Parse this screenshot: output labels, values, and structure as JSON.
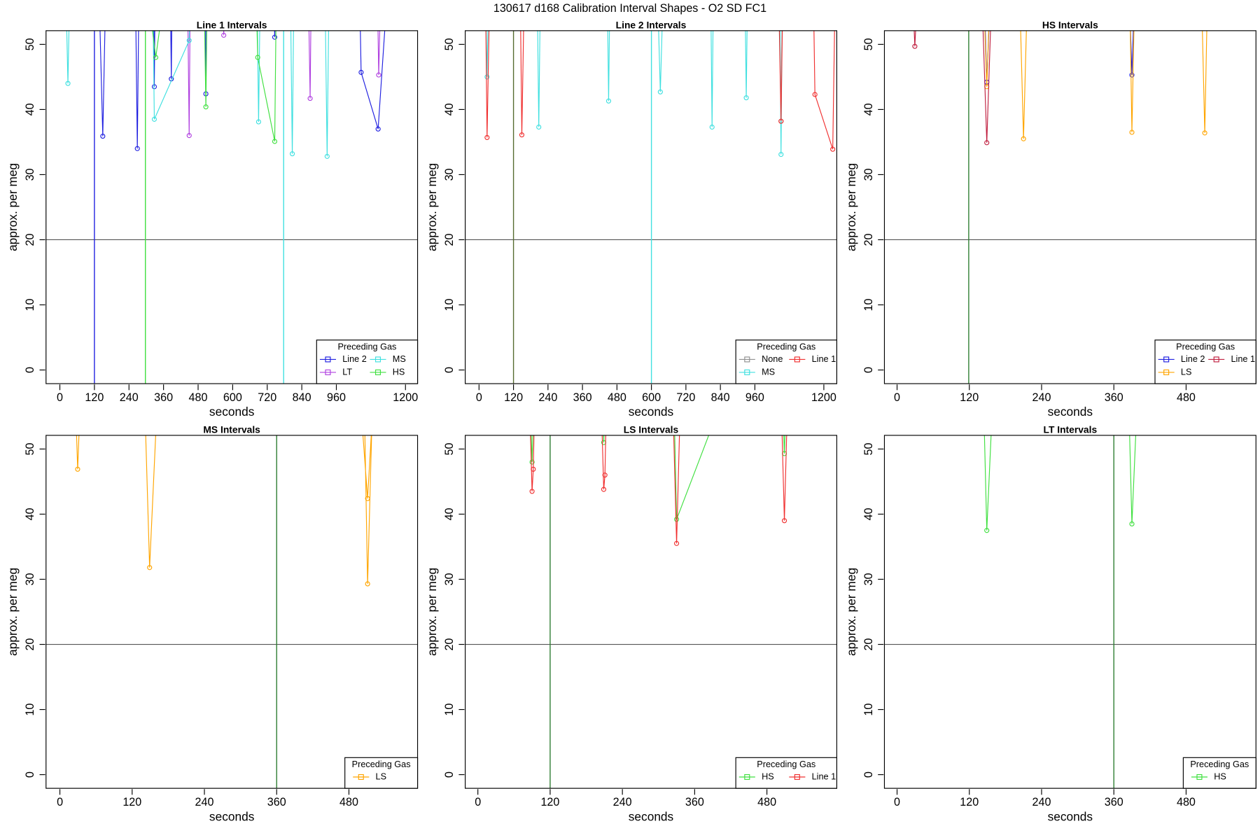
{
  "title": "130617   d168   Calibration Interval Shapes - O2 SD FC1",
  "chart_data": [
    {
      "type": "line",
      "title": "Line 1 Intervals",
      "x_label": "seconds",
      "y_label": "approx. per meg",
      "xlim": [
        -48,
        1242
      ],
      "ylim": [
        -2.1,
        52.1
      ],
      "xticks": [
        0,
        120,
        240,
        360,
        480,
        600,
        720,
        840,
        960,
        1200
      ],
      "yticks": [
        0,
        10,
        20,
        30,
        40,
        50
      ],
      "hline": 20,
      "legend": "bottom-right",
      "legend_title": "Preceding Gas",
      "vlines": [
        {
          "value": 120,
          "color": "#2020e0"
        },
        {
          "value": 297,
          "color": "#40e040"
        },
        {
          "value": 777,
          "color": "#40e0e0"
        }
      ],
      "series": [
        {
          "name": "Line 2",
          "color": "#2020e0",
          "x": [
            135,
            149,
            160,
            262,
            269,
            275,
            325,
            328,
            331,
            383,
            387,
            390,
            503,
            507,
            510,
            741,
            746,
            750,
            1040,
            1046,
            1105,
            1140
          ],
          "values": [
            60,
            35.9,
            60,
            60,
            34,
            60,
            60,
            43.5,
            60,
            60,
            44.7,
            60,
            60,
            42.4,
            60,
            60,
            51.1,
            60,
            60,
            45.7,
            37,
            60
          ]
        },
        {
          "name": "LT",
          "color": "#b040e0",
          "x": [
            443,
            449,
            453,
            565,
            569,
            573,
            862,
            869,
            873,
            1102,
            1107,
            1115
          ],
          "values": [
            60,
            36,
            60,
            60,
            51.4,
            60,
            60,
            41.7,
            60,
            60,
            45.3,
            60
          ]
        },
        {
          "name": "MS",
          "color": "#40e0e0",
          "x": [
            20,
            28,
            35,
            322,
            328,
            449,
            455,
            684,
            690,
            696,
            800,
            807,
            813,
            920,
            928,
            935
          ],
          "values": [
            60,
            44,
            60,
            60,
            38.5,
            50.6,
            60,
            60,
            38.1,
            60,
            60,
            33.2,
            60,
            60,
            32.8,
            60
          ]
        },
        {
          "name": "HS",
          "color": "#40e040",
          "x": [
            300,
            333,
            370,
            500,
            507,
            512,
            680,
            687,
            746,
            752
          ],
          "values": [
            60,
            48,
            60,
            60,
            40.4,
            60,
            60,
            48,
            35.1,
            60
          ]
        }
      ]
    },
    {
      "type": "line",
      "title": "Line 2 Intervals",
      "x_label": "seconds",
      "y_label": "approx. per meg",
      "xlim": [
        -48,
        1245
      ],
      "ylim": [
        -2.1,
        52.1
      ],
      "xticks": [
        0,
        120,
        240,
        360,
        480,
        600,
        720,
        840,
        960,
        1200
      ],
      "yticks": [
        0,
        10,
        20,
        30,
        40,
        50
      ],
      "hline": 20,
      "legend": "bottom-right",
      "legend_title": "Preceding Gas",
      "vlines": [
        {
          "value": 120,
          "color": "#556b2f"
        },
        {
          "value": 600,
          "color": "#40e0e0"
        }
      ],
      "series": [
        {
          "name": "None",
          "color": "#909090",
          "x": [
            1045,
            1051,
            1056
          ],
          "values": [
            60,
            38.2,
            60
          ]
        },
        {
          "name": "MS",
          "color": "#40e0e0",
          "x": [
            22,
            28,
            34,
            202,
            208,
            214,
            446,
            451,
            456,
            620,
            631,
            642,
            806,
            811,
            816,
            925,
            930,
            935,
            1046,
            1051,
            1056
          ],
          "values": [
            60,
            45,
            60,
            60,
            37.3,
            60,
            60,
            41.3,
            60,
            60,
            42.7,
            60,
            60,
            37.3,
            60,
            60,
            41.8,
            60,
            60,
            33.1,
            60
          ]
        },
        {
          "name": "Line 1",
          "color": "#f03030",
          "x": [
            22,
            28,
            38,
            143,
            149,
            158,
            1042,
            1051,
            1058,
            1163,
            1169,
            1231,
            1240
          ],
          "values": [
            60,
            35.7,
            60,
            60,
            36.1,
            60,
            60,
            38.2,
            60,
            60,
            42.3,
            33.9,
            60
          ]
        }
      ]
    },
    {
      "type": "line",
      "title": "HS Intervals",
      "x_label": "seconds",
      "y_label": "approx. per meg",
      "xlim": [
        -21,
        596
      ],
      "ylim": [
        -2.1,
        52.1
      ],
      "xticks": [
        0,
        120,
        240,
        360,
        480
      ],
      "yticks": [
        0,
        10,
        20,
        30,
        40,
        50
      ],
      "hline": 20,
      "legend": "bottom-right",
      "legend_title": "Preceding Gas",
      "vlines": [
        {
          "value": 119,
          "color": "#2e7d32"
        }
      ],
      "series": [
        {
          "name": "Line 2",
          "color": "#2020e0",
          "x": [
            144,
            149,
            156,
            385,
            390,
            395
          ],
          "values": [
            60,
            44.2,
            60,
            60,
            45.3,
            60
          ]
        },
        {
          "name": "LS",
          "color": "#ffa500",
          "x": [
            143,
            149,
            155,
            203,
            210,
            217,
            386,
            390,
            395,
            505,
            511,
            516
          ],
          "values": [
            60,
            43.5,
            60,
            60,
            35.5,
            60,
            60,
            36.5,
            60,
            60,
            36.4,
            60
          ]
        },
        {
          "name": "Line 1",
          "color": "#c02040",
          "x": [
            25,
            29.5,
            35,
            140,
            149,
            158
          ],
          "values": [
            60,
            49.7,
            60,
            60,
            34.9,
            60
          ]
        }
      ]
    },
    {
      "type": "line",
      "title": "MS Intervals",
      "x_label": "seconds",
      "y_label": "approx. per meg",
      "xlim": [
        -23,
        594
      ],
      "ylim": [
        -2.1,
        52.1
      ],
      "xticks": [
        0,
        120,
        240,
        360,
        480
      ],
      "yticks": [
        0,
        10,
        20,
        30,
        40,
        50
      ],
      "hline": 20,
      "legend": "bottom-right",
      "legend_title": "Preceding Gas",
      "vlines": [
        {
          "value": 360,
          "color": "#2e7d32"
        }
      ],
      "series": [
        {
          "name": "LS",
          "color": "#ffa500",
          "x": [
            25,
            29.5,
            35,
            140,
            149,
            163,
            497,
            511,
            522,
            505,
            511,
            520
          ],
          "values": [
            60,
            46.9,
            60,
            60,
            31.8,
            60,
            60,
            42.4,
            60,
            60,
            29.3,
            60
          ]
        }
      ]
    },
    {
      "type": "line",
      "title": "LS Intervals",
      "x_label": "seconds",
      "y_label": "approx. per meg",
      "xlim": [
        -21,
        596
      ],
      "ylim": [
        -2.1,
        52.1
      ],
      "xticks": [
        0,
        120,
        240,
        360,
        480
      ],
      "yticks": [
        0,
        10,
        20,
        30,
        40,
        50
      ],
      "hline": 20,
      "legend": "bottom-right",
      "legend_title": "Preceding Gas",
      "vlines": [
        {
          "value": 120,
          "color": "#2e7d32"
        }
      ],
      "series": [
        {
          "name": "HS",
          "color": "#40e040",
          "x": [
            86,
            90,
            94,
            206,
            209,
            212,
            325,
            330,
            385,
            505,
            509,
            513
          ],
          "values": [
            60,
            48,
            60,
            60,
            51,
            60,
            60,
            39.2,
            52.5,
            60,
            49.3,
            60
          ]
        },
        {
          "name": "Line 1",
          "color": "#f03030",
          "x": [
            85,
            90,
            92,
            95,
            204,
            209,
            211,
            214,
            323,
            330,
            337,
            503,
            509,
            515
          ],
          "values": [
            60,
            43.5,
            46.9,
            60,
            60,
            43.8,
            46,
            60,
            60,
            35.5,
            60,
            60,
            39,
            60
          ]
        }
      ]
    },
    {
      "type": "line",
      "title": "LT Intervals",
      "x_label": "seconds",
      "y_label": "approx. per meg",
      "xlim": [
        -21,
        596
      ],
      "ylim": [
        -2.1,
        52.1
      ],
      "xticks": [
        0,
        120,
        240,
        360,
        480
      ],
      "yticks": [
        0,
        10,
        20,
        30,
        40,
        50
      ],
      "hline": 20,
      "legend": "bottom-right",
      "legend_title": "Preceding Gas",
      "vlines": [
        {
          "value": 360,
          "color": "#2e7d32"
        }
      ],
      "series": [
        {
          "name": "HS",
          "color": "#40e040",
          "x": [
            143,
            149,
            160,
            384,
            390,
            400
          ],
          "values": [
            60,
            37.5,
            60,
            60,
            38.5,
            60
          ]
        }
      ]
    }
  ]
}
